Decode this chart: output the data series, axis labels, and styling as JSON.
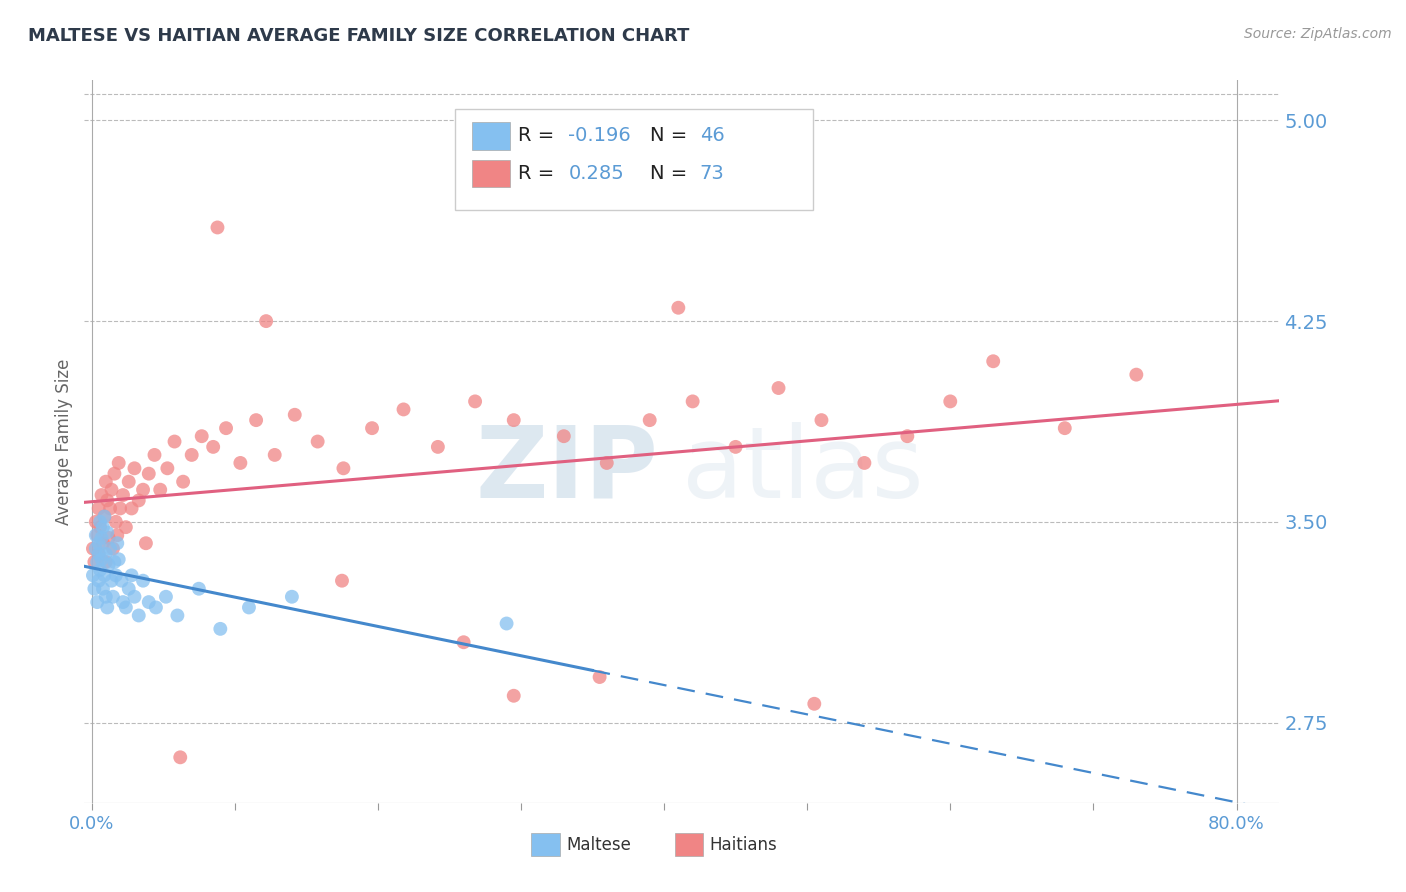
{
  "title": "MALTESE VS HAITIAN AVERAGE FAMILY SIZE CORRELATION CHART",
  "source": "Source: ZipAtlas.com",
  "ylabel": "Average Family Size",
  "yticks": [
    2.75,
    3.5,
    4.25,
    5.0
  ],
  "ymin": 2.45,
  "ymax": 5.15,
  "xmin": -0.005,
  "xmax": 0.83,
  "maltese_color": "#85C0F0",
  "haitian_color": "#F08585",
  "maltese_line_color": "#4488CC",
  "haitian_line_color": "#E06080",
  "bg_color": "#FFFFFF",
  "grid_color": "#BBBBBB",
  "axis_label_color": "#5B9BD5",
  "title_color": "#2E3A4A",
  "maltese_N": 46,
  "haitian_N": 73,
  "bottom_legend_maltese": "Maltese",
  "bottom_legend_haitian": "Haitians",
  "watermark_zip": "ZIP",
  "watermark_atlas": "atlas",
  "maltese_x": [
    0.001,
    0.002,
    0.003,
    0.003,
    0.004,
    0.004,
    0.005,
    0.005,
    0.005,
    0.006,
    0.006,
    0.007,
    0.007,
    0.008,
    0.008,
    0.009,
    0.009,
    0.01,
    0.01,
    0.011,
    0.011,
    0.012,
    0.013,
    0.014,
    0.015,
    0.016,
    0.017,
    0.018,
    0.019,
    0.021,
    0.022,
    0.024,
    0.026,
    0.028,
    0.03,
    0.033,
    0.036,
    0.04,
    0.045,
    0.052,
    0.06,
    0.075,
    0.09,
    0.11,
    0.14,
    0.29
  ],
  "maltese_y": [
    3.3,
    3.25,
    3.4,
    3.45,
    3.35,
    3.2,
    3.38,
    3.42,
    3.28,
    3.5,
    3.32,
    3.44,
    3.36,
    3.48,
    3.25,
    3.3,
    3.52,
    3.38,
    3.22,
    3.46,
    3.18,
    3.34,
    3.4,
    3.28,
    3.22,
    3.35,
    3.3,
    3.42,
    3.36,
    3.28,
    3.2,
    3.18,
    3.25,
    3.3,
    3.22,
    3.15,
    3.28,
    3.2,
    3.18,
    3.22,
    3.15,
    3.25,
    3.1,
    3.18,
    3.22,
    3.12
  ],
  "haitian_x": [
    0.001,
    0.002,
    0.003,
    0.004,
    0.005,
    0.005,
    0.006,
    0.007,
    0.008,
    0.009,
    0.01,
    0.01,
    0.011,
    0.012,
    0.013,
    0.014,
    0.015,
    0.016,
    0.017,
    0.018,
    0.019,
    0.02,
    0.022,
    0.024,
    0.026,
    0.028,
    0.03,
    0.033,
    0.036,
    0.04,
    0.044,
    0.048,
    0.053,
    0.058,
    0.064,
    0.07,
    0.077,
    0.085,
    0.094,
    0.104,
    0.115,
    0.128,
    0.142,
    0.158,
    0.176,
    0.196,
    0.218,
    0.242,
    0.268,
    0.295,
    0.33,
    0.36,
    0.39,
    0.42,
    0.45,
    0.48,
    0.51,
    0.54,
    0.57,
    0.6,
    0.63,
    0.68,
    0.73,
    0.41,
    0.355,
    0.295,
    0.505,
    0.26,
    0.175,
    0.122,
    0.088,
    0.062,
    0.038
  ],
  "haitian_y": [
    3.4,
    3.35,
    3.5,
    3.45,
    3.55,
    3.38,
    3.48,
    3.6,
    3.42,
    3.52,
    3.65,
    3.35,
    3.58,
    3.44,
    3.55,
    3.62,
    3.4,
    3.68,
    3.5,
    3.45,
    3.72,
    3.55,
    3.6,
    3.48,
    3.65,
    3.55,
    3.7,
    3.58,
    3.62,
    3.68,
    3.75,
    3.62,
    3.7,
    3.8,
    3.65,
    3.75,
    3.82,
    3.78,
    3.85,
    3.72,
    3.88,
    3.75,
    3.9,
    3.8,
    3.7,
    3.85,
    3.92,
    3.78,
    3.95,
    3.88,
    3.82,
    3.72,
    3.88,
    3.95,
    3.78,
    4.0,
    3.88,
    3.72,
    3.82,
    3.95,
    4.1,
    3.85,
    4.05,
    4.3,
    2.92,
    2.85,
    2.82,
    3.05,
    3.28,
    4.25,
    4.6,
    2.62,
    3.42
  ]
}
